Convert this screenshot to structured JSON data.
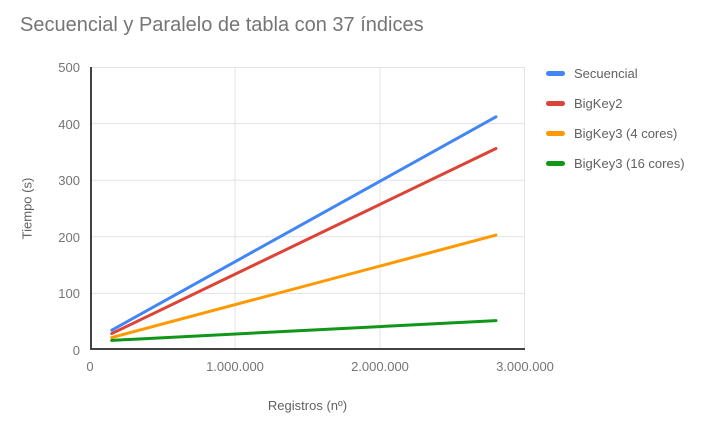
{
  "chart_data": {
    "type": "line",
    "title": "Secuencial y Paralelo de tabla con 37 índices",
    "xlabel": "Registros (nº)",
    "ylabel": "Tiempo (s)",
    "xlim": [
      0,
      3000000
    ],
    "ylim": [
      0,
      500
    ],
    "grid": true,
    "legend_position": "right",
    "x_ticks": [
      {
        "value": 0,
        "label": "0"
      },
      {
        "value": 1000000,
        "label": "1.000.000"
      },
      {
        "value": 2000000,
        "label": "2.000.000"
      },
      {
        "value": 3000000,
        "label": "3.000.000"
      }
    ],
    "y_ticks": [
      {
        "value": 0,
        "label": "0"
      },
      {
        "value": 100,
        "label": "100"
      },
      {
        "value": 200,
        "label": "200"
      },
      {
        "value": 300,
        "label": "300"
      },
      {
        "value": 400,
        "label": "400"
      },
      {
        "value": 500,
        "label": "500"
      }
    ],
    "x": [
      150000,
      2800000
    ],
    "series": [
      {
        "name": "Secuencial",
        "color": "#4285F4",
        "values": [
          35,
          412
        ]
      },
      {
        "name": "BigKey2",
        "color": "#DB4437",
        "values": [
          29,
          356
        ]
      },
      {
        "name": "BigKey3 (4 cores)",
        "color": "#FF9900",
        "values": [
          22,
          203
        ]
      },
      {
        "name": "BigKey3 (16 cores)",
        "color": "#109618",
        "values": [
          17,
          52
        ]
      }
    ],
    "colors": {
      "background": "#FFFFFF",
      "title_text": "#757575",
      "tick_text": "#757575",
      "axis_title_text": "#616161",
      "legend_text": "#616161",
      "axis_line": "#424242",
      "gridline": "#E3E3E3"
    }
  }
}
